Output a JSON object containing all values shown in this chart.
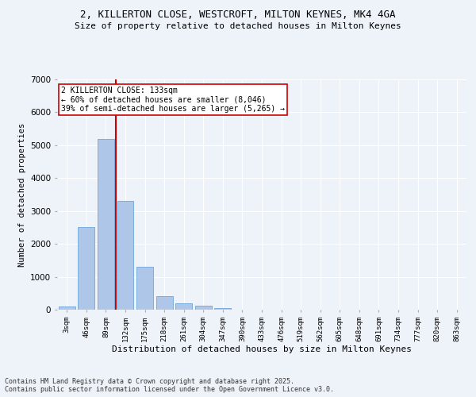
{
  "title_line1": "2, KILLERTON CLOSE, WESTCROFT, MILTON KEYNES, MK4 4GA",
  "title_line2": "Size of property relative to detached houses in Milton Keynes",
  "xlabel": "Distribution of detached houses by size in Milton Keynes",
  "ylabel": "Number of detached properties",
  "categories": [
    "3sqm",
    "46sqm",
    "89sqm",
    "132sqm",
    "175sqm",
    "218sqm",
    "261sqm",
    "304sqm",
    "347sqm",
    "390sqm",
    "433sqm",
    "476sqm",
    "519sqm",
    "562sqm",
    "605sqm",
    "648sqm",
    "691sqm",
    "734sqm",
    "777sqm",
    "820sqm",
    "863sqm"
  ],
  "values": [
    100,
    2500,
    5200,
    3300,
    1300,
    420,
    200,
    130,
    60,
    0,
    0,
    0,
    0,
    0,
    0,
    0,
    0,
    0,
    0,
    0,
    0
  ],
  "bar_color": "#aec6e8",
  "bar_edge_color": "#5b9bd5",
  "annotation_line1": "2 KILLERTON CLOSE: 133sqm",
  "annotation_line2": "← 60% of detached houses are smaller (8,046)",
  "annotation_line3": "39% of semi-detached houses are larger (5,265) →",
  "vline_x_index": 3,
  "vline_color": "#cc0000",
  "annotation_box_edge": "#cc0000",
  "ylim": [
    0,
    7000
  ],
  "yticks": [
    0,
    1000,
    2000,
    3000,
    4000,
    5000,
    6000,
    7000
  ],
  "bg_color": "#eef2f9",
  "grid_color": "#ffffff",
  "footer_line1": "Contains HM Land Registry data © Crown copyright and database right 2025.",
  "footer_line2": "Contains public sector information licensed under the Open Government Licence v3.0."
}
